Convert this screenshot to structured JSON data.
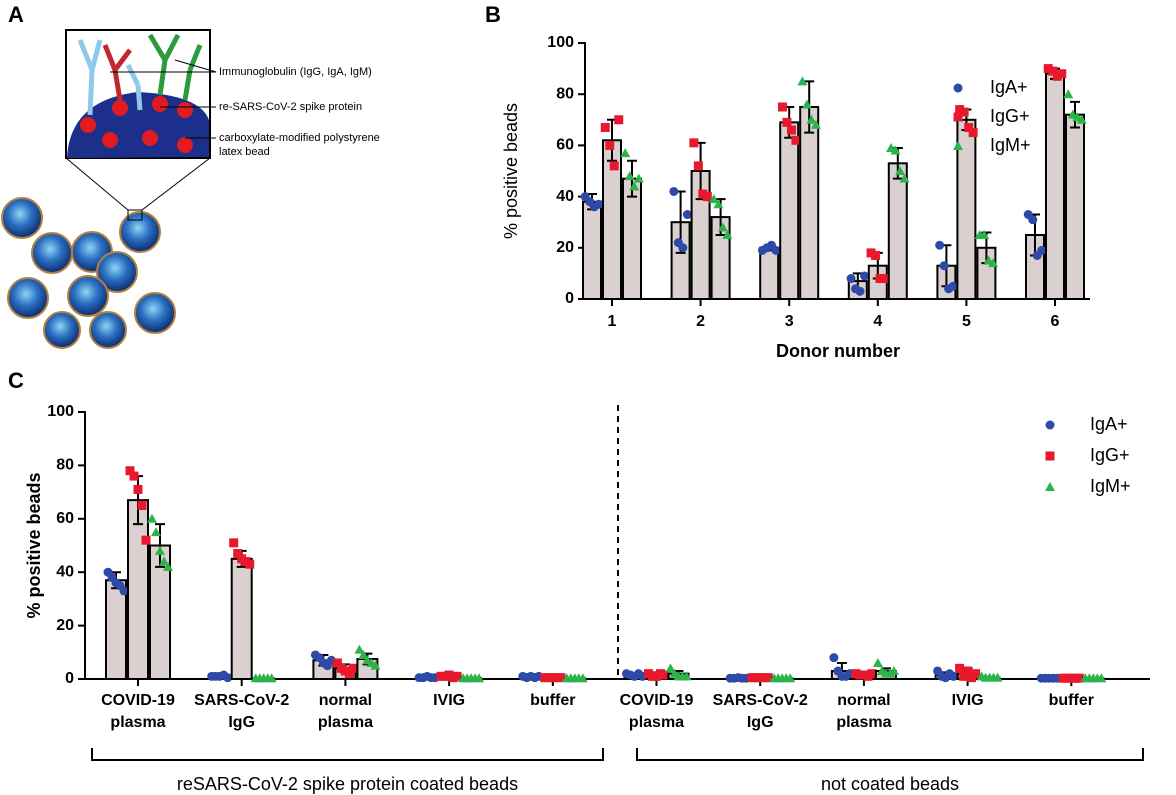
{
  "diagram": {
    "label": "A",
    "annotations": [
      "Immunoglobulin (IgG, IgA, IgM)",
      "re-SARS-CoV-2 spike protein",
      "carboxylate-modified polystyrene",
      "latex bead"
    ]
  },
  "chart_data": [
    {
      "type": "bar",
      "panel": "B",
      "ylabel": "% positive beads",
      "xlabel": "Donor number",
      "categories": [
        "1",
        "2",
        "3",
        "4",
        "5",
        "6"
      ],
      "ylim": [
        0,
        100
      ],
      "yticks": [
        0,
        20,
        40,
        60,
        80,
        100
      ],
      "bar_color": "#d9d0cf",
      "legend": "upper right",
      "series": [
        {
          "name": "IgA+",
          "color": "#2e4aa8",
          "marker": "circle",
          "values": [
            38,
            30,
            20,
            7,
            13,
            25
          ],
          "errors": [
            3,
            12,
            1,
            3,
            8,
            8
          ],
          "points": [
            [
              40,
              38,
              36,
              37
            ],
            [
              42,
              22,
              20,
              33
            ],
            [
              19,
              20,
              21,
              19
            ],
            [
              8,
              4,
              3,
              9
            ],
            [
              21,
              13,
              4,
              5
            ],
            [
              33,
              31,
              17,
              19
            ]
          ]
        },
        {
          "name": "IgG+",
          "color": "#e8192c",
          "marker": "square",
          "values": [
            62,
            50,
            69,
            13,
            70,
            88
          ],
          "errors": [
            8,
            11,
            6,
            5,
            4,
            2
          ],
          "points": [
            [
              67,
              60,
              52,
              70
            ],
            [
              61,
              52,
              41,
              40
            ],
            [
              75,
              69,
              66,
              62
            ],
            [
              18,
              17,
              8,
              8
            ],
            [
              74,
              73,
              67,
              65
            ],
            [
              90,
              89,
              87,
              88
            ]
          ]
        },
        {
          "name": "IgM+",
          "color": "#2cb34a",
          "marker": "triangle",
          "values": [
            47,
            32,
            75,
            53,
            20,
            72
          ],
          "errors": [
            7,
            7,
            10,
            6,
            6,
            5
          ],
          "points": [
            [
              57,
              48,
              44,
              47
            ],
            [
              39,
              37,
              28,
              25
            ],
            [
              85,
              76,
              70,
              68
            ],
            [
              59,
              58,
              50,
              47
            ],
            [
              25,
              25,
              15,
              14
            ],
            [
              80,
              72,
              71,
              70
            ]
          ]
        }
      ]
    },
    {
      "type": "bar",
      "panel": "C",
      "ylabel": "% positive beads",
      "categories": [
        [
          "COVID-19",
          "plasma"
        ],
        [
          "SARS-CoV-2",
          "IgG"
        ],
        [
          "normal",
          "plasma"
        ],
        [
          "IVIG"
        ],
        [
          "buffer"
        ],
        [
          "COVID-19",
          "plasma"
        ],
        [
          "SARS-CoV-2",
          "IgG"
        ],
        [
          "normal",
          "plasma"
        ],
        [
          "IVIG"
        ],
        [
          "buffer"
        ]
      ],
      "group_labels": [
        "reSARS-CoV-2 spike protein coated beads",
        "not coated beads"
      ],
      "ylim": [
        0,
        100
      ],
      "yticks": [
        0,
        20,
        40,
        60,
        80,
        100
      ],
      "bar_color": "#d9d0cf",
      "legend": "upper right",
      "series": [
        {
          "name": "IgA+",
          "color": "#2e4aa8",
          "marker": "circle",
          "values": [
            37,
            1,
            7,
            0.5,
            0.5,
            1.5,
            0.3,
            3,
            1.5,
            0.3
          ],
          "errors": [
            3,
            0.3,
            2,
            0.3,
            0.3,
            0.5,
            0.2,
            3,
            1,
            0.1
          ],
          "points": [
            [
              40,
              38,
              36,
              35,
              33
            ],
            [
              1,
              1,
              1,
              1.5,
              0.5
            ],
            [
              9,
              8,
              6,
              5,
              7
            ],
            [
              0.5,
              0.5,
              1,
              0.5,
              0.5
            ],
            [
              1,
              0.5,
              1,
              0.5,
              1
            ],
            [
              2,
              1.5,
              1,
              2,
              1
            ],
            [
              0.3,
              0.3,
              0.5,
              0.3,
              0.3
            ],
            [
              8,
              3,
              1,
              1,
              2
            ],
            [
              3,
              1,
              0.5,
              2,
              1
            ],
            [
              0.3,
              0.3,
              0.3,
              0.3,
              0.3
            ]
          ]
        },
        {
          "name": "IgG+",
          "color": "#e8192c",
          "marker": "square",
          "values": [
            67,
            45,
            4,
            1,
            0.5,
            1.5,
            0.5,
            1.5,
            2,
            0.3
          ],
          "errors": [
            9,
            3,
            1.5,
            0.3,
            0.2,
            1,
            0.2,
            0.5,
            2,
            0.1
          ],
          "points": [
            [
              78,
              76,
              71,
              65,
              52
            ],
            [
              51,
              47,
              45,
              44,
              43
            ],
            [
              6,
              4,
              3,
              2,
              4
            ],
            [
              1,
              1,
              1.5,
              0.5,
              1
            ],
            [
              0.5,
              0.5,
              0.5,
              0.5,
              0.5
            ],
            [
              2,
              1,
              1,
              2,
              1.5
            ],
            [
              0.5,
              0.5,
              0.5,
              0.5,
              0.5
            ],
            [
              2,
              1.5,
              1.5,
              1,
              2
            ],
            [
              4,
              1,
              3,
              0.5,
              2
            ],
            [
              0.3,
              0.3,
              0.3,
              0.3,
              0.3
            ]
          ]
        },
        {
          "name": "IgM+",
          "color": "#2cb34a",
          "marker": "triangle",
          "values": [
            50,
            0.3,
            7.5,
            0.3,
            0.3,
            2,
            0.3,
            3,
            0.5,
            0.3
          ],
          "errors": [
            8,
            0.1,
            2,
            0.1,
            0.1,
            1,
            0.1,
            1,
            0.3,
            0.1
          ],
          "points": [
            [
              60,
              55,
              48,
              44,
              42
            ],
            [
              0.3,
              0.3,
              0.3,
              0.3,
              0.3
            ],
            [
              11,
              9,
              7,
              6,
              5
            ],
            [
              0.3,
              0.3,
              0.3,
              0.3,
              0.3
            ],
            [
              0.3,
              0.3,
              0.3,
              0.3,
              0.3
            ],
            [
              4,
              2,
              1,
              1,
              1
            ],
            [
              0.3,
              0.3,
              0.3,
              0.3,
              0.3
            ],
            [
              6,
              3,
              2,
              2,
              3
            ],
            [
              1,
              0.5,
              0.5,
              0.5,
              0.5
            ],
            [
              0.3,
              0.3,
              0.3,
              0.3,
              0.3
            ]
          ]
        }
      ]
    }
  ]
}
